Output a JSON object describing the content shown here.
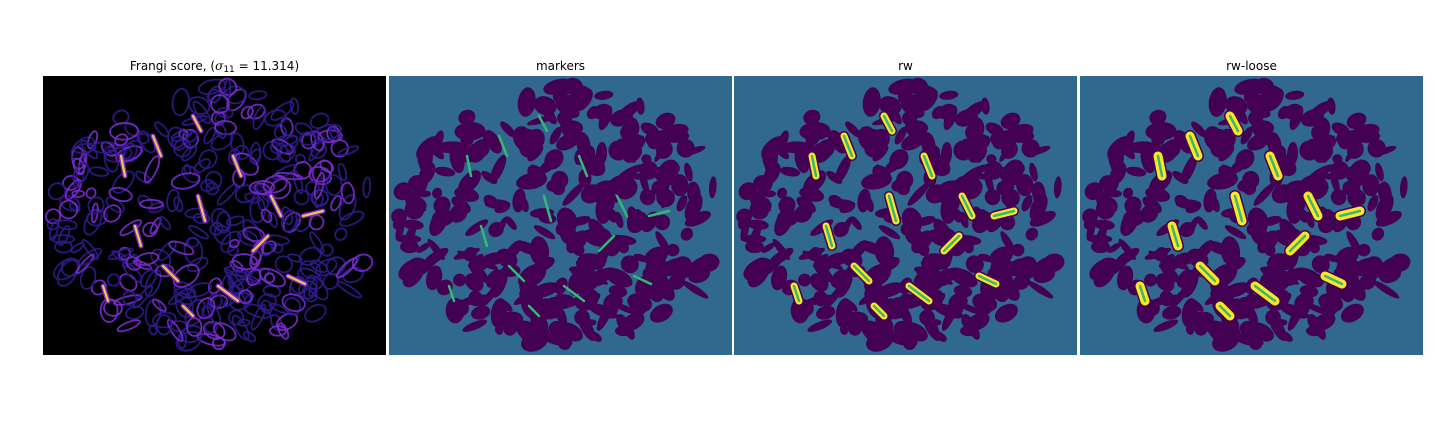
{
  "figure": {
    "panels": [
      {
        "id": "frangi",
        "title_prefix": "Frangi score, (",
        "title_symbol": "σ",
        "title_sub": "11",
        "title_suffix": " = 11.314)"
      },
      {
        "id": "markers",
        "title": "markers"
      },
      {
        "id": "rw",
        "title": "rw"
      },
      {
        "id": "rw-loose",
        "title": "rw-loose"
      }
    ],
    "colors": {
      "frangi_background": "#000000",
      "label_background": "#31688e",
      "label_foreground": "#440154",
      "label_marker": "#35b779",
      "label_vessel": "#fde725",
      "frangi_low": "#2d1b8c",
      "frangi_mid": "#7a2bd0",
      "frangi_high": "#f6c24c"
    }
  }
}
